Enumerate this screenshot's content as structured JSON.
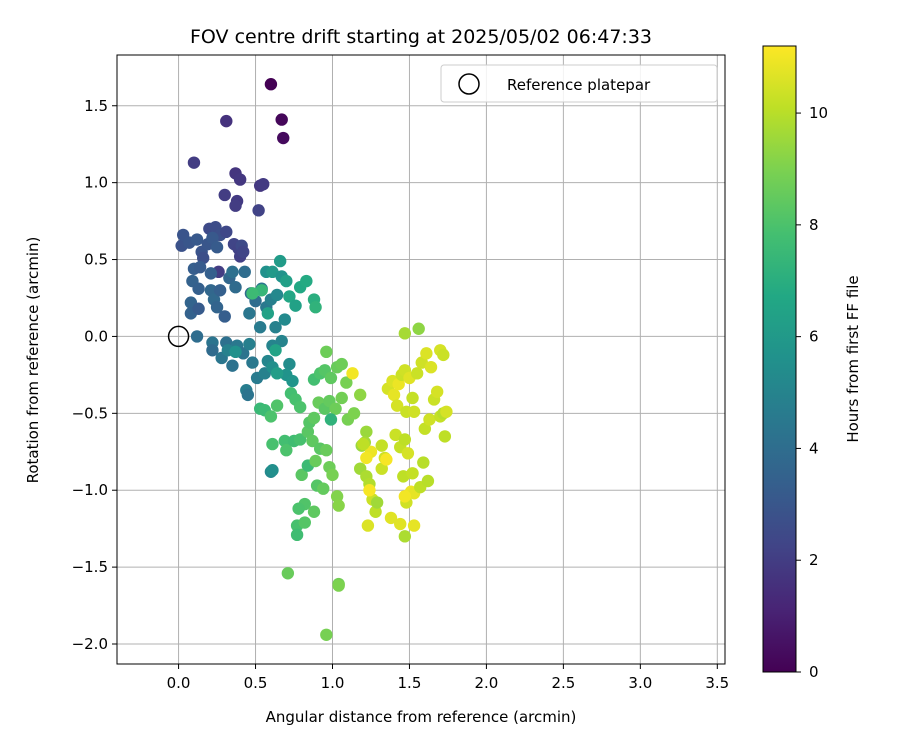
{
  "chart_data": {
    "type": "scatter",
    "title": "FOV centre drift starting at 2025/05/02 06:47:33",
    "xlabel": "Angular distance from reference (arcmin)",
    "ylabel": "Rotation from reference (arcmin)",
    "xlim": [
      -0.4,
      3.55
    ],
    "ylim": [
      -2.13,
      1.83
    ],
    "xticks": [
      0.0,
      0.5,
      1.0,
      1.5,
      2.0,
      2.5,
      3.0,
      3.5
    ],
    "xtick_labels": [
      "0.0",
      "0.5",
      "1.0",
      "1.5",
      "2.0",
      "2.5",
      "3.0",
      "3.5"
    ],
    "yticks": [
      -2.0,
      -1.5,
      -1.0,
      -0.5,
      0.0,
      0.5,
      1.0,
      1.5
    ],
    "ytick_labels": [
      "−2.0",
      "−1.5",
      "−1.0",
      "−0.5",
      "0.0",
      "0.5",
      "1.0",
      "1.5"
    ],
    "grid": true,
    "legend": {
      "placement": "top-right",
      "entries": [
        "Reference platepar"
      ]
    },
    "colorbar": {
      "label": "Hours from first FF file",
      "range": [
        0,
        11.2
      ],
      "ticks": [
        0,
        2,
        4,
        6,
        8,
        10
      ],
      "tick_labels": [
        "0",
        "2",
        "4",
        "6",
        "8",
        "10"
      ],
      "colormap": "viridis"
    },
    "reference_point": {
      "x": 0.0,
      "y": 0.0
    },
    "points": [
      [
        0.6,
        1.64,
        0.0
      ],
      [
        0.67,
        1.41,
        0.2
      ],
      [
        0.68,
        1.29,
        0.3
      ],
      [
        0.31,
        1.4,
        1.6
      ],
      [
        0.1,
        1.13,
        2.0
      ],
      [
        0.37,
        1.06,
        1.7
      ],
      [
        0.4,
        1.02,
        1.8
      ],
      [
        0.3,
        0.92,
        2.0
      ],
      [
        0.38,
        0.88,
        1.9
      ],
      [
        0.37,
        0.85,
        2.0
      ],
      [
        0.53,
        0.98,
        1.8
      ],
      [
        0.55,
        0.99,
        1.9
      ],
      [
        0.52,
        0.82,
        2.2
      ],
      [
        0.02,
        0.59,
        2.8
      ],
      [
        0.03,
        0.66,
        2.9
      ],
      [
        0.07,
        0.61,
        3.0
      ],
      [
        0.12,
        0.63,
        3.1
      ],
      [
        0.15,
        0.55,
        2.9
      ],
      [
        0.19,
        0.6,
        3.0
      ],
      [
        0.2,
        0.7,
        2.5
      ],
      [
        0.24,
        0.71,
        2.6
      ],
      [
        0.27,
        0.66,
        2.7
      ],
      [
        0.22,
        0.64,
        3.1
      ],
      [
        0.25,
        0.58,
        3.2
      ],
      [
        0.16,
        0.51,
        2.7
      ],
      [
        0.31,
        0.68,
        2.4
      ],
      [
        0.36,
        0.6,
        2.3
      ],
      [
        0.39,
        0.57,
        2.2
      ],
      [
        0.41,
        0.59,
        2.5
      ],
      [
        0.4,
        0.52,
        2.1
      ],
      [
        0.42,
        0.55,
        2.3
      ],
      [
        0.26,
        0.42,
        2.0
      ],
      [
        0.1,
        0.44,
        3.3
      ],
      [
        0.14,
        0.45,
        3.2
      ],
      [
        0.09,
        0.36,
        3.5
      ],
      [
        0.13,
        0.31,
        3.4
      ],
      [
        0.08,
        0.22,
        3.6
      ],
      [
        0.08,
        0.15,
        3.5
      ],
      [
        0.13,
        0.18,
        3.2
      ],
      [
        0.21,
        0.41,
        3.4
      ],
      [
        0.21,
        0.3,
        3.7
      ],
      [
        0.23,
        0.24,
        3.8
      ],
      [
        0.25,
        0.19,
        3.6
      ],
      [
        0.27,
        0.3,
        3.4
      ],
      [
        0.3,
        0.13,
        3.3
      ],
      [
        0.33,
        0.38,
        3.7
      ],
      [
        0.35,
        0.42,
        4.1
      ],
      [
        0.37,
        0.32,
        3.9
      ],
      [
        0.43,
        0.42,
        4.0
      ],
      [
        0.47,
        0.28,
        3.9
      ],
      [
        0.46,
        0.15,
        4.4
      ],
      [
        0.5,
        0.23,
        4.0
      ],
      [
        0.54,
        0.31,
        4.4
      ],
      [
        0.53,
        0.06,
        4.6
      ],
      [
        0.57,
        0.19,
        4.5
      ],
      [
        0.6,
        0.24,
        4.8
      ],
      [
        0.64,
        0.27,
        5.2
      ],
      [
        0.12,
        0.0,
        4.0
      ],
      [
        0.22,
        -0.04,
        4.3
      ],
      [
        0.22,
        -0.09,
        3.9
      ],
      [
        0.28,
        -0.14,
        4.4
      ],
      [
        0.31,
        -0.04,
        4.1
      ],
      [
        0.35,
        -0.19,
        4.2
      ],
      [
        0.38,
        -0.06,
        4.5
      ],
      [
        0.42,
        -0.11,
        4.3
      ],
      [
        0.46,
        -0.05,
        4.8
      ],
      [
        0.48,
        -0.17,
        4.5
      ],
      [
        0.44,
        -0.35,
        4.7
      ],
      [
        0.45,
        -0.38,
        4.3
      ],
      [
        0.51,
        -0.27,
        4.6
      ],
      [
        0.56,
        -0.24,
        4.9
      ],
      [
        0.58,
        -0.16,
        5.1
      ],
      [
        0.61,
        -0.06,
        5.0
      ],
      [
        0.63,
        0.06,
        4.9
      ],
      [
        0.67,
        -0.03,
        5.0
      ],
      [
        0.69,
        0.11,
        5.3
      ],
      [
        0.72,
        -0.18,
        5.4
      ],
      [
        0.32,
        -0.09,
        4.9
      ],
      [
        0.37,
        -0.1,
        5.6
      ],
      [
        0.61,
        -0.2,
        5.5
      ],
      [
        0.7,
        -0.25,
        5.7
      ],
      [
        0.74,
        -0.29,
        5.8
      ],
      [
        0.57,
        0.42,
        5.6
      ],
      [
        0.61,
        0.42,
        6.0
      ],
      [
        0.66,
        0.49,
        6.1
      ],
      [
        0.67,
        0.39,
        5.7
      ],
      [
        0.7,
        0.36,
        6.3
      ],
      [
        0.72,
        0.26,
        6.6
      ],
      [
        0.76,
        0.2,
        6.4
      ],
      [
        0.79,
        0.32,
        6.7
      ],
      [
        0.83,
        0.36,
        6.8
      ],
      [
        0.88,
        0.24,
        7.0
      ],
      [
        0.89,
        0.19,
        7.2
      ],
      [
        0.54,
        0.3,
        7.4
      ],
      [
        0.58,
        0.15,
        6.4
      ],
      [
        0.48,
        0.28,
        7.6
      ],
      [
        0.63,
        -0.09,
        6.5
      ],
      [
        0.64,
        -0.24,
        6.2
      ],
      [
        0.6,
        -0.88,
        5.2
      ],
      [
        0.61,
        -0.87,
        5.5
      ],
      [
        0.53,
        -0.47,
        7.5
      ],
      [
        0.56,
        -0.48,
        7.6
      ],
      [
        0.6,
        -0.52,
        8.0
      ],
      [
        0.64,
        -0.45,
        8.1
      ],
      [
        0.61,
        -0.7,
        7.9
      ],
      [
        0.69,
        -0.68,
        7.8
      ],
      [
        0.7,
        -0.74,
        8.0
      ],
      [
        0.73,
        -0.37,
        7.8
      ],
      [
        0.76,
        -0.41,
        7.9
      ],
      [
        0.79,
        -0.46,
        8.0
      ],
      [
        0.75,
        -0.68,
        7.7
      ],
      [
        0.8,
        -0.9,
        8.3
      ],
      [
        0.82,
        -1.09,
        8.1
      ],
      [
        0.78,
        -1.12,
        8.0
      ],
      [
        0.77,
        -1.23,
        7.9
      ],
      [
        0.77,
        -1.29,
        7.7
      ],
      [
        0.82,
        -1.21,
        8.2
      ],
      [
        0.88,
        -1.14,
        8.4
      ],
      [
        0.71,
        -1.54,
        8.6
      ],
      [
        0.96,
        -1.94,
        8.9
      ],
      [
        1.04,
        -1.61,
        8.8
      ],
      [
        1.04,
        -1.62,
        9.0
      ],
      [
        0.79,
        -0.67,
        7.9
      ],
      [
        0.84,
        -0.84,
        7.6
      ],
      [
        0.84,
        -0.62,
        8.3
      ],
      [
        0.87,
        -0.68,
        8.4
      ],
      [
        0.89,
        -0.81,
        8.6
      ],
      [
        0.92,
        -0.73,
        8.3
      ],
      [
        0.96,
        -0.74,
        8.6
      ],
      [
        0.9,
        -0.97,
        8.2
      ],
      [
        0.94,
        -0.99,
        8.5
      ],
      [
        0.98,
        -0.85,
        8.7
      ],
      [
        1.0,
        -0.9,
        8.9
      ],
      [
        1.03,
        -1.04,
        9.1
      ],
      [
        1.04,
        -1.1,
        9.2
      ],
      [
        0.85,
        -0.56,
        8.2
      ],
      [
        0.88,
        -0.53,
        8.4
      ],
      [
        0.91,
        -0.43,
        8.6
      ],
      [
        0.95,
        -0.47,
        8.3
      ],
      [
        0.98,
        -0.42,
        8.5
      ],
      [
        1.02,
        -0.47,
        8.7
      ],
      [
        1.06,
        -0.4,
        8.8
      ],
      [
        1.09,
        -0.3,
        8.9
      ],
      [
        0.88,
        -0.28,
        7.8
      ],
      [
        0.92,
        -0.24,
        8.0
      ],
      [
        0.95,
        -0.22,
        8.2
      ],
      [
        0.99,
        -0.27,
        8.4
      ],
      [
        1.03,
        -0.2,
        8.6
      ],
      [
        1.06,
        -0.18,
        8.7
      ],
      [
        0.96,
        -0.1,
        8.7
      ],
      [
        0.99,
        -0.54,
        7.2
      ],
      [
        1.1,
        -0.54,
        8.9
      ],
      [
        1.14,
        -0.5,
        9.0
      ],
      [
        1.18,
        -0.38,
        9.3
      ],
      [
        1.22,
        -0.62,
        9.5
      ],
      [
        1.19,
        -0.71,
        9.5
      ],
      [
        1.21,
        -0.69,
        9.7
      ],
      [
        1.18,
        -0.86,
        9.6
      ],
      [
        1.22,
        -0.91,
        9.8
      ],
      [
        1.24,
        -0.96,
        9.9
      ],
      [
        1.26,
        -1.06,
        10.3
      ],
      [
        1.28,
        -1.14,
        10.1
      ],
      [
        1.29,
        -1.08,
        9.6
      ],
      [
        1.13,
        -0.24,
        11.0
      ],
      [
        1.32,
        -0.71,
        10.2
      ],
      [
        1.32,
        -0.86,
        10.3
      ],
      [
        1.34,
        -0.79,
        10.4
      ],
      [
        1.36,
        -0.34,
        10.5
      ],
      [
        1.39,
        -0.29,
        10.6
      ],
      [
        1.4,
        -0.38,
        10.8
      ],
      [
        1.43,
        -0.31,
        10.9
      ],
      [
        1.42,
        -0.45,
        10.5
      ],
      [
        1.45,
        -0.25,
        10.3
      ],
      [
        1.47,
        -0.22,
        10.4
      ],
      [
        1.5,
        -0.27,
        10.7
      ],
      [
        1.48,
        -0.49,
        10.3
      ],
      [
        1.52,
        -0.4,
        10.2
      ],
      [
        1.53,
        -0.49,
        10.4
      ],
      [
        1.41,
        -0.64,
        10.3
      ],
      [
        1.44,
        -0.72,
        10.2
      ],
      [
        1.47,
        -0.67,
        10.1
      ],
      [
        1.49,
        -0.76,
        10.5
      ],
      [
        1.46,
        -0.91,
        10.1
      ],
      [
        1.48,
        -1.08,
        10.4
      ],
      [
        1.44,
        -1.22,
        10.7
      ],
      [
        1.47,
        -1.3,
        9.8
      ],
      [
        1.53,
        -1.23,
        10.8
      ],
      [
        1.51,
        -1.01,
        10.9
      ],
      [
        1.52,
        -0.89,
        10.2
      ],
      [
        1.53,
        -1.02,
        10.8
      ],
      [
        1.47,
        -1.04,
        11.0
      ],
      [
        1.57,
        -0.98,
        10.1
      ],
      [
        1.59,
        -0.82,
        10.0
      ],
      [
        1.55,
        -0.24,
        10.3
      ],
      [
        1.58,
        -0.17,
        10.4
      ],
      [
        1.61,
        -0.11,
        10.6
      ],
      [
        1.6,
        -0.6,
        10.2
      ],
      [
        1.63,
        -0.54,
        10.4
      ],
      [
        1.66,
        -0.41,
        10.3
      ],
      [
        1.68,
        -0.36,
        10.5
      ],
      [
        1.7,
        -0.52,
        10.2
      ],
      [
        1.72,
        -0.5,
        10.0
      ],
      [
        1.74,
        -0.49,
        10.5
      ],
      [
        1.73,
        -0.65,
        10.1
      ],
      [
        1.64,
        -0.2,
        10.6
      ],
      [
        1.7,
        -0.09,
        10.5
      ],
      [
        1.72,
        -0.12,
        10.3
      ],
      [
        1.62,
        -0.94,
        10.0
      ],
      [
        1.47,
        0.02,
        9.7
      ],
      [
        1.56,
        0.05,
        9.3
      ],
      [
        1.25,
        -0.75,
        10.9
      ],
      [
        1.23,
        -1.23,
        10.6
      ],
      [
        1.38,
        -1.18,
        10.7
      ],
      [
        1.22,
        -0.79,
        11.0
      ],
      [
        1.24,
        -1.0,
        11.1
      ],
      [
        1.35,
        -0.8,
        11.1
      ],
      [
        1.2,
        -0.7,
        10.1
      ]
    ]
  }
}
